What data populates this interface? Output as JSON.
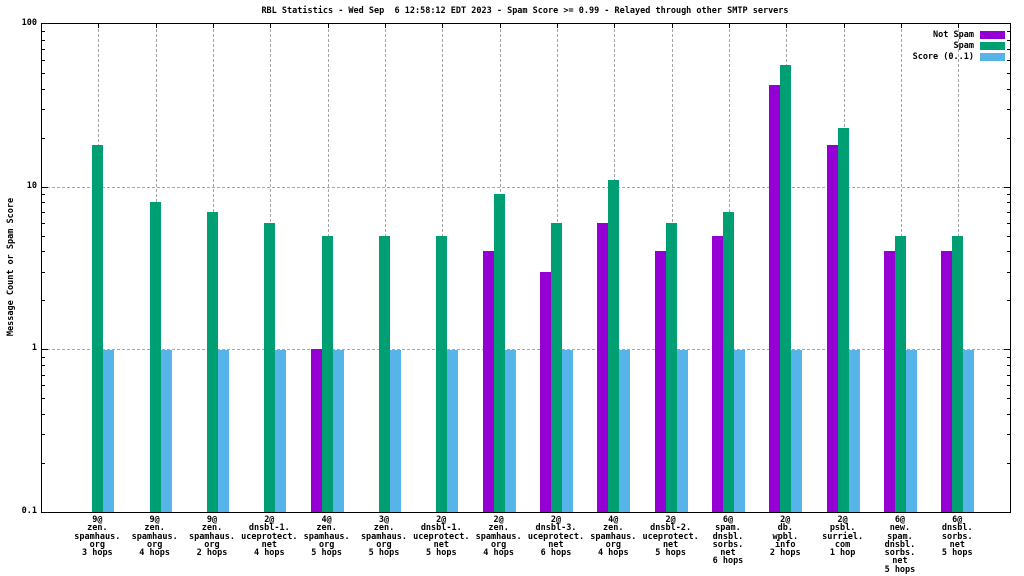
{
  "title": "RBL Statistics - Wed Sep  6 12:58:12 EDT 2023 - Spam Score >= 0.99 - Relayed through other SMTP servers",
  "chart_data": {
    "type": "bar",
    "title": "RBL Statistics - Wed Sep  6 12:58:12 EDT 2023 - Spam Score >= 0.99 - Relayed through other SMTP servers",
    "ylabel": "Message Count or Spam Score",
    "y_scale": "log",
    "ylim": [
      0.1,
      100
    ],
    "yticks": [
      100,
      10,
      1,
      0.1
    ],
    "grid": true,
    "legend_position": "top-right-inside",
    "colors": {
      "not_spam": "#9400d3",
      "spam": "#009e73",
      "score": "#56b4e9",
      "grid": "#a6a6a6",
      "axis": "#000000"
    },
    "categories": [
      [
        "9@",
        "zen.",
        "spamhaus.",
        "org",
        "3 hops"
      ],
      [
        "9@",
        "zen.",
        "spamhaus.",
        "org",
        "4 hops"
      ],
      [
        "9@",
        "zen.",
        "spamhaus.",
        "org",
        "2 hops"
      ],
      [
        "2@",
        "dnsbl-1.",
        "uceprotect.",
        "net",
        "4 hops"
      ],
      [
        "4@",
        "zen.",
        "spamhaus.",
        "org",
        "5 hops"
      ],
      [
        "3@",
        "zen.",
        "spamhaus.",
        "org",
        "5 hops"
      ],
      [
        "2@",
        "dnsbl-1.",
        "uceprotect.",
        "net",
        "5 hops"
      ],
      [
        "2@",
        "zen.",
        "spamhaus.",
        "org",
        "4 hops"
      ],
      [
        "2@",
        "dnsbl-3.",
        "uceprotect.",
        "net",
        "6 hops"
      ],
      [
        "4@",
        "zen.",
        "spamhaus.",
        "org",
        "4 hops"
      ],
      [
        "2@",
        "dnsbl-2.",
        "uceprotect.",
        "net",
        "5 hops"
      ],
      [
        "6@",
        "spam.",
        "dnsbl.",
        "sorbs.",
        "net",
        "6 hops"
      ],
      [
        "2@",
        "db.",
        "wpbl.",
        "info",
        "2 hops"
      ],
      [
        "2@",
        "psbl.",
        "surriel.",
        "com",
        "1 hop"
      ],
      [
        "6@",
        "new.",
        "spam.",
        "dnsbl.",
        "sorbs.",
        "net",
        "5 hops"
      ],
      [
        "6@",
        "dnsbl.",
        "sorbs.",
        "net",
        "5 hops"
      ]
    ],
    "series": [
      {
        "name": "Not Spam",
        "color": "#9400d3",
        "values": [
          null,
          null,
          null,
          null,
          1,
          null,
          null,
          4,
          3,
          6,
          4,
          5,
          42,
          18,
          4,
          4
        ]
      },
      {
        "name": "Spam",
        "color": "#009e73",
        "values": [
          18,
          8,
          7,
          6,
          5,
          5,
          5,
          9,
          6,
          11,
          6,
          7,
          56,
          23,
          5,
          5
        ]
      },
      {
        "name": "Score (0..1)",
        "color": "#56b4e9",
        "values": [
          0.99,
          0.99,
          0.99,
          0.99,
          0.99,
          0.99,
          0.99,
          0.99,
          0.99,
          0.99,
          0.99,
          0.99,
          0.99,
          0.99,
          0.99,
          0.99
        ]
      }
    ]
  }
}
